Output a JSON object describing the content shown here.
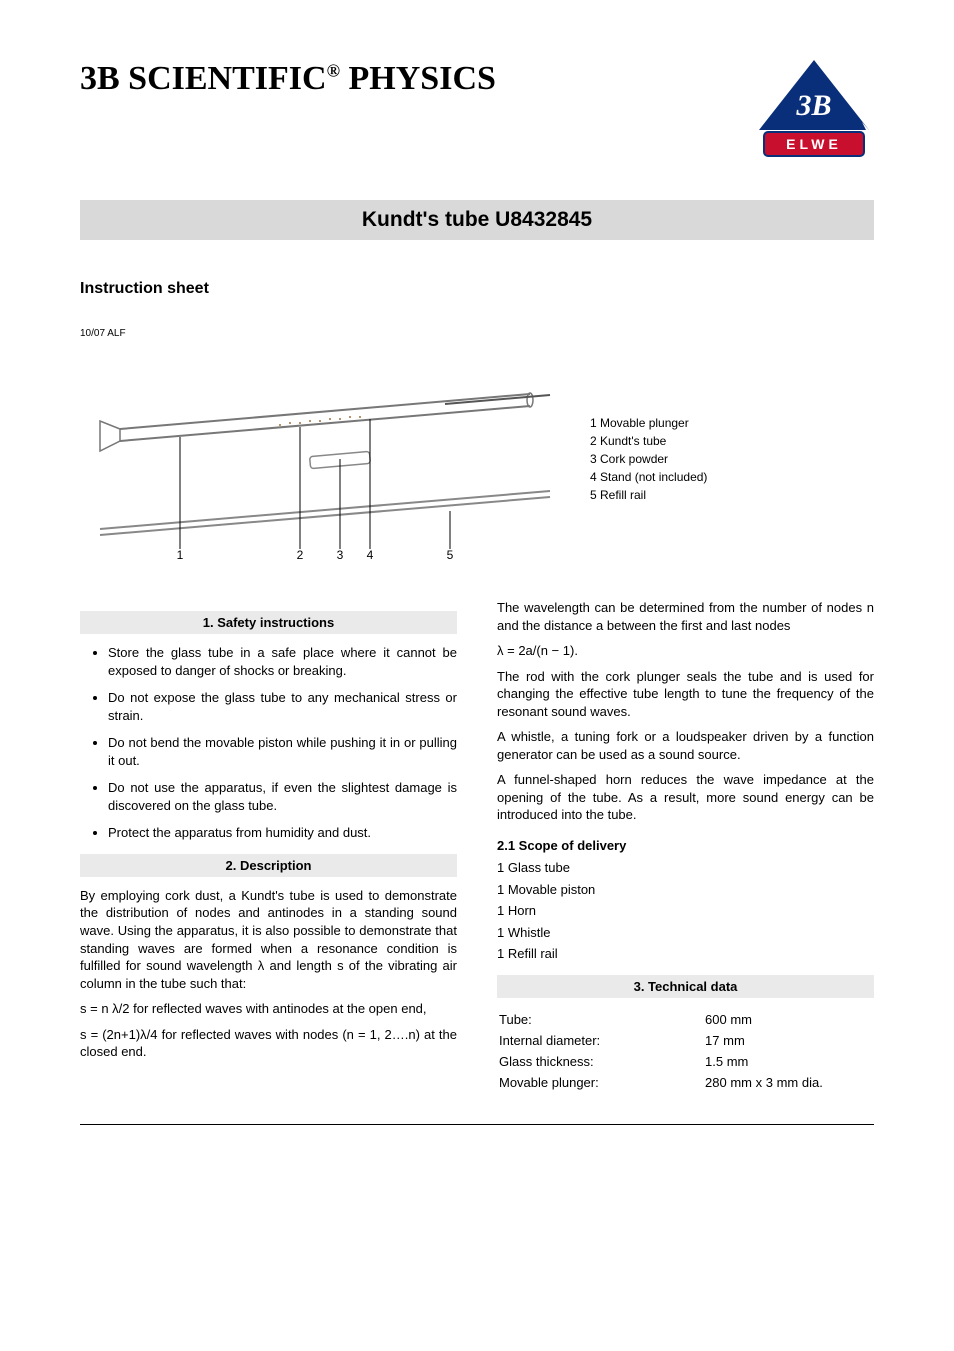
{
  "header": {
    "brand_html": "3B SCIENTIFIC<sup>®</sup> PHYSICS",
    "logo": {
      "triangle_color": "#0a2f7a",
      "pill_color": "#c8102e",
      "pill_text": "E L W E",
      "tri_text": "3B"
    }
  },
  "product_band": "Kundt's tube   U8432845",
  "instruction_sheet": "Instruction sheet",
  "doc_code": "10/07 ALF",
  "figure": {
    "labels": [
      "1",
      "2",
      "3",
      "4",
      "5"
    ],
    "legend": [
      "1  Movable plunger",
      "2  Kundt's tube",
      "3  Cork powder",
      "4  Stand (not included)",
      "5  Refill rail"
    ]
  },
  "left": {
    "s1_title": "1. Safety instructions",
    "safety": [
      "Store the glass tube in a safe place where it cannot be exposed to danger of shocks or breaking.",
      "Do not expose the glass tube to any mechanical stress or strain.",
      "Do not bend the movable piston while pushing it in or pulling it out.",
      "Do not use the apparatus, if even the slightest damage is discovered on the glass tube.",
      "Protect the apparatus from humidity and dust."
    ],
    "s2_title": "2. Description",
    "desc_p1": "By employing cork dust, a Kundt's tube is used to demonstrate the distribution of nodes and antinodes in a standing sound wave. Using the apparatus, it is also possible to demonstrate that standing waves are formed when a resonance condition is fulfilled for sound wavelength λ and length s of the vibrating air column in the tube such that:",
    "desc_f1": "s = n λ/2 for reflected waves with antinodes at the open end,",
    "desc_f2": "s = (2n+1)λ/4 for reflected waves with nodes (n = 1, 2….n) at the closed end."
  },
  "right": {
    "p1": "The wavelength can be determined from the number of nodes n and the distance a between the first and last nodes",
    "formula": "λ = 2a/(n − 1).",
    "p2": "The rod with the cork plunger seals the tube and is used for changing the effective tube length to tune the frequency of the resonant sound waves.",
    "p3": "A whistle, a tuning fork or a loudspeaker driven by a function generator can be used as a sound source.",
    "p4": "A funnel-shaped horn reduces the wave impedance at the opening of the tube. As a result, more sound energy can be introduced into the tube.",
    "scope_title": "2.1 Scope of delivery",
    "scope": [
      "1  Glass tube",
      "1  Movable piston",
      "1  Horn",
      "1  Whistle",
      "1  Refill rail"
    ],
    "s3_title": "3. Technical data",
    "tech": [
      {
        "k": "Tube:",
        "v": "600 mm"
      },
      {
        "k": "Internal diameter:",
        "v": "17 mm"
      },
      {
        "k": "Glass thickness:",
        "v": "1.5 mm"
      },
      {
        "k": "Movable plunger:",
        "v": "280 mm x 3 mm dia."
      }
    ]
  },
  "colors": {
    "band_bg": "#d9d9d9",
    "section_bg": "#eaeaea",
    "text": "#000000",
    "page_bg": "#ffffff"
  }
}
